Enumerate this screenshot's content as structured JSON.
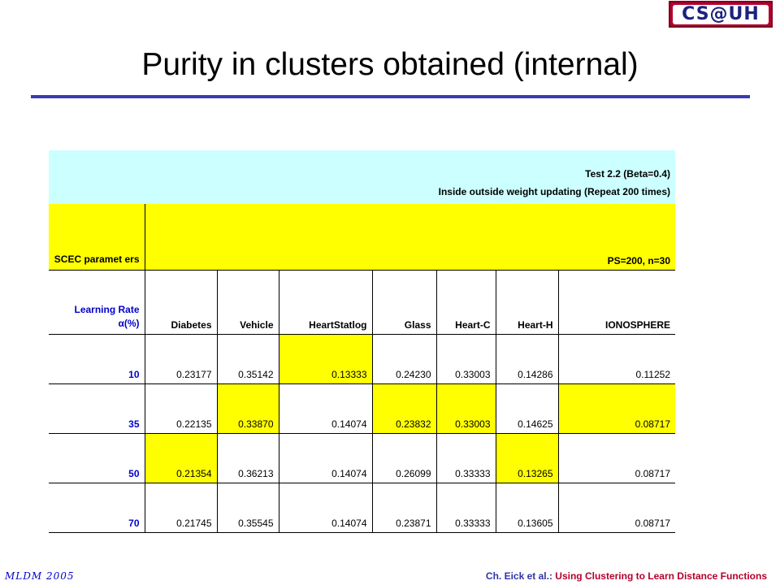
{
  "logo": {
    "text": "CS@UH"
  },
  "title": "Purity in clusters obtained (internal)",
  "table": {
    "test_label": "Test 2.2  (Beta=0.4)",
    "test_desc": "Inside outside weight updating (Repeat 200 times)",
    "scec_label": "SCEC paramet ers",
    "ps_label": "PS=200, n=30",
    "rate_label_1": "Learning Rate",
    "rate_label_2": "α(%)",
    "columns": [
      "Diabetes",
      "Vehicle",
      "HeartStatlog",
      "Glass",
      "Heart-C",
      "Heart-H",
      "IONOSPHERE"
    ],
    "rows": [
      {
        "rate": "10",
        "values": [
          "0.23177",
          "0.35142",
          "0.13333",
          "0.24230",
          "0.33003",
          "0.14286",
          "0.11252"
        ]
      },
      {
        "rate": "35",
        "values": [
          "0.22135",
          "0.33870",
          "0.14074",
          "0.23832",
          "0.33003",
          "0.14625",
          "0.08717"
        ]
      },
      {
        "rate": "50",
        "values": [
          "0.21354",
          "0.36213",
          "0.14074",
          "0.26099",
          "0.33333",
          "0.13265",
          "0.08717"
        ]
      },
      {
        "rate": "70",
        "values": [
          "0.21745",
          "0.35545",
          "0.14074",
          "0.23871",
          "0.33333",
          "0.13605",
          "0.08717"
        ]
      }
    ],
    "highlight_color": "#ffff00"
  },
  "footer": {
    "left": "MLDM 2005",
    "author": "Ch. Eick et al.",
    "sep": ": ",
    "topic": "Using Clustering to Learn Distance Functions"
  }
}
